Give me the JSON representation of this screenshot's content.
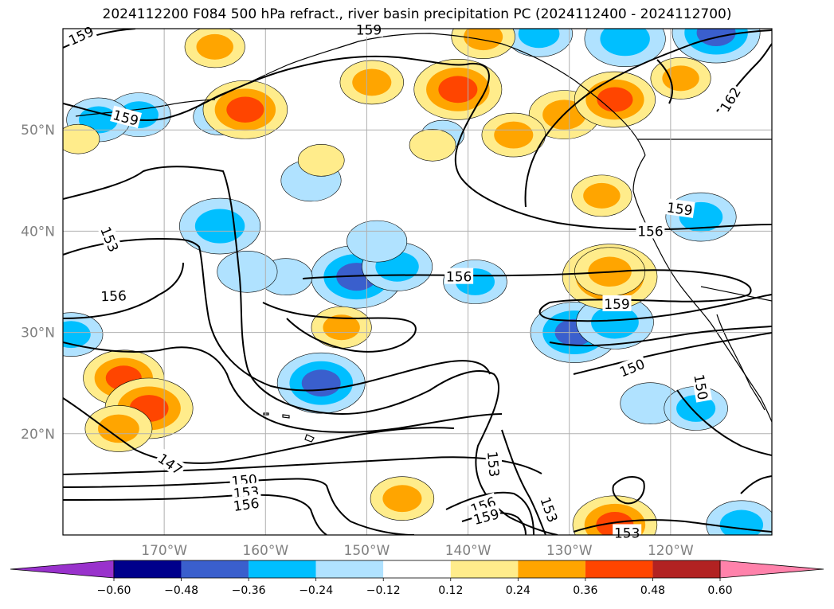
{
  "chart_data": {
    "type": "heatmap",
    "title": "2024112200 F084 500 hPa refract., river basin precipitation PC (2024112400 - 2024112700)",
    "projection": "equirectangular",
    "lon_range": [
      -180,
      -110
    ],
    "lat_range": [
      10,
      60
    ],
    "lat_ticks": [
      {
        "value": 20,
        "label": "20°N"
      },
      {
        "value": 30,
        "label": "30°N"
      },
      {
        "value": 40,
        "label": "40°N"
      },
      {
        "value": 50,
        "label": "50°N"
      }
    ],
    "lon_ticks": [
      {
        "value": -170,
        "label": "170°W"
      },
      {
        "value": -160,
        "label": "160°W"
      },
      {
        "value": -150,
        "label": "150°W"
      },
      {
        "value": -140,
        "label": "140°W"
      },
      {
        "value": -130,
        "label": "130°W"
      },
      {
        "value": -120,
        "label": "120°W"
      }
    ],
    "grid": true,
    "colorbar": {
      "extend": "both",
      "levels": [
        -0.6,
        -0.48,
        -0.36,
        -0.24,
        -0.12,
        0.12,
        0.24,
        0.36,
        0.48,
        0.6
      ],
      "tick_labels": [
        "−0.60",
        "−0.48",
        "−0.36",
        "−0.24",
        "−0.12",
        "0.12",
        "0.24",
        "0.36",
        "0.48",
        "0.60"
      ],
      "colors": [
        "#9932cc",
        "#00008b",
        "#3a5fcd",
        "#00bfff",
        "#b0e2ff",
        "#ffffff",
        "#ffec8b",
        "#ffa500",
        "#ff4500",
        "#b22222",
        "#ff82ab"
      ]
    },
    "contour_labels": [
      {
        "text": "159",
        "lon": -178.2,
        "lat": 59.3,
        "angle": -25
      },
      {
        "text": "159",
        "lon": -149.8,
        "lat": 59.9,
        "angle": 0
      },
      {
        "text": "159",
        "lon": -173.8,
        "lat": 51.2,
        "angle": 15
      },
      {
        "text": "162",
        "lon": -114.1,
        "lat": 53.0,
        "angle": -58
      },
      {
        "text": "153",
        "lon": -175.4,
        "lat": 39.2,
        "angle": 68
      },
      {
        "text": "159",
        "lon": -119.1,
        "lat": 42.2,
        "angle": 8
      },
      {
        "text": "156",
        "lon": -122.0,
        "lat": 40.0,
        "angle": 0
      },
      {
        "text": "156",
        "lon": -175.0,
        "lat": 33.6,
        "angle": -2
      },
      {
        "text": "156",
        "lon": -140.9,
        "lat": 35.5,
        "angle": 0
      },
      {
        "text": "159",
        "lon": -125.3,
        "lat": 32.8,
        "angle": 0
      },
      {
        "text": "150",
        "lon": -123.8,
        "lat": 26.5,
        "angle": -22
      },
      {
        "text": "150",
        "lon": -117.0,
        "lat": 24.6,
        "angle": 80
      },
      {
        "text": "147",
        "lon": -169.4,
        "lat": 17.0,
        "angle": 35
      },
      {
        "text": "150",
        "lon": -162.1,
        "lat": 15.4,
        "angle": -5
      },
      {
        "text": "153",
        "lon": -161.9,
        "lat": 14.2,
        "angle": -5
      },
      {
        "text": "156",
        "lon": -161.9,
        "lat": 13.0,
        "angle": -8
      },
      {
        "text": "153",
        "lon": -137.5,
        "lat": 17.0,
        "angle": 85
      },
      {
        "text": "156",
        "lon": -138.5,
        "lat": 12.9,
        "angle": -20
      },
      {
        "text": "159",
        "lon": -138.2,
        "lat": 11.8,
        "angle": -15
      },
      {
        "text": "153",
        "lon": -132.0,
        "lat": 12.5,
        "angle": 70
      },
      {
        "text": "153",
        "lon": -124.3,
        "lat": 10.2,
        "angle": 0
      }
    ],
    "anomaly_features": [
      {
        "lon": -151.0,
        "lat": 35.5,
        "value": -0.42
      },
      {
        "lon": -147.0,
        "lat": 36.5,
        "value": -0.3
      },
      {
        "lon": -149.0,
        "lat": 39.0,
        "value": -0.24
      },
      {
        "lon": -158.0,
        "lat": 35.5,
        "value": -0.2
      },
      {
        "lon": -129.5,
        "lat": 30.0,
        "value": -0.4
      },
      {
        "lon": -125.5,
        "lat": 31.0,
        "value": -0.34
      },
      {
        "lon": -154.5,
        "lat": 25.0,
        "value": -0.4
      },
      {
        "lon": -164.5,
        "lat": 40.5,
        "value": -0.36
      },
      {
        "lon": -161.8,
        "lat": 36.0,
        "value": -0.24
      },
      {
        "lon": -172.5,
        "lat": 51.5,
        "value": -0.26
      },
      {
        "lon": -176.5,
        "lat": 51.0,
        "value": -0.26
      },
      {
        "lon": -164.5,
        "lat": 51.3,
        "value": -0.2
      },
      {
        "lon": -155.5,
        "lat": 45.0,
        "value": -0.24
      },
      {
        "lon": -124.5,
        "lat": 59.0,
        "value": -0.36
      },
      {
        "lon": -115.5,
        "lat": 59.6,
        "value": -0.4
      },
      {
        "lon": -117.0,
        "lat": 41.4,
        "value": -0.3
      },
      {
        "lon": -139.3,
        "lat": 35.0,
        "value": -0.26
      },
      {
        "lon": -179.2,
        "lat": 29.8,
        "value": -0.26
      },
      {
        "lon": -122.0,
        "lat": 23.0,
        "value": -0.24
      },
      {
        "lon": -117.5,
        "lat": 22.5,
        "value": -0.26
      },
      {
        "lon": -113.0,
        "lat": 11.0,
        "value": -0.3
      },
      {
        "lon": -142.5,
        "lat": 49.5,
        "value": -0.14
      },
      {
        "lon": -133.0,
        "lat": 59.5,
        "value": -0.28
      },
      {
        "lon": -126.0,
        "lat": 35.5,
        "value": 0.44
      },
      {
        "lon": -126.0,
        "lat": 36.0,
        "value": 0.3
      },
      {
        "lon": -141.0,
        "lat": 54.0,
        "value": 0.4
      },
      {
        "lon": -162.0,
        "lat": 52.0,
        "value": 0.38
      },
      {
        "lon": -130.5,
        "lat": 51.5,
        "value": 0.3
      },
      {
        "lon": -125.5,
        "lat": 53.0,
        "value": 0.36
      },
      {
        "lon": -174.0,
        "lat": 25.5,
        "value": 0.36
      },
      {
        "lon": -171.5,
        "lat": 22.5,
        "value": 0.4
      },
      {
        "lon": -174.5,
        "lat": 20.5,
        "value": 0.28
      },
      {
        "lon": -149.5,
        "lat": 54.7,
        "value": 0.26
      },
      {
        "lon": -119.0,
        "lat": 55.1,
        "value": 0.24
      },
      {
        "lon": -135.5,
        "lat": 49.5,
        "value": 0.26
      },
      {
        "lon": -126.8,
        "lat": 43.5,
        "value": 0.24
      },
      {
        "lon": -146.5,
        "lat": 13.6,
        "value": 0.26
      },
      {
        "lon": -152.5,
        "lat": 30.5,
        "value": 0.24
      },
      {
        "lon": -125.5,
        "lat": 11.0,
        "value": 0.38
      },
      {
        "lon": -165.0,
        "lat": 58.2,
        "value": 0.24
      },
      {
        "lon": -138.5,
        "lat": 59.2,
        "value": 0.26
      },
      {
        "lon": -154.5,
        "lat": 47.0,
        "value": 0.16
      },
      {
        "lon": -143.5,
        "lat": 48.5,
        "value": 0.16
      },
      {
        "lon": -178.5,
        "lat": 49.1,
        "value": 0.14
      }
    ]
  }
}
